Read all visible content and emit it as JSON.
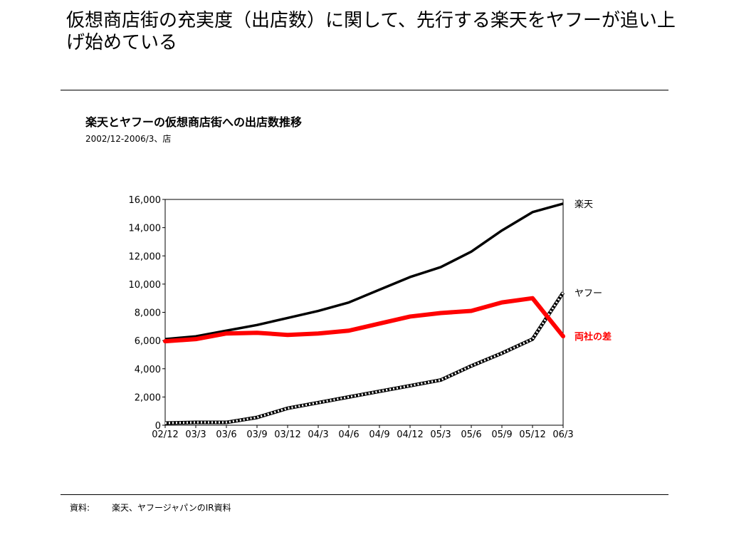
{
  "headline": "仮想商店街の充実度（出店数）に関して、先行する楽天をヤフーが追い上げ始めている",
  "source": {
    "label": "資料:",
    "text": "楽天、ヤフージャパンのIR資料"
  },
  "colors": {
    "rakuten": "#000000",
    "yahoo": "#000000",
    "difference": "#ff0000"
  },
  "chart_data": {
    "type": "line",
    "title": "楽天とヤフーの仮想商店街への出店数推移",
    "subtitle": "2002/12-2006/3、店",
    "categories": [
      "02/12",
      "03/3",
      "03/6",
      "03/9",
      "03/12",
      "04/3",
      "04/6",
      "04/9",
      "04/12",
      "05/3",
      "05/6",
      "05/9",
      "05/12",
      "06/3"
    ],
    "ylim": [
      0,
      16000
    ],
    "yticks": [
      0,
      2000,
      4000,
      6000,
      8000,
      10000,
      12000,
      14000,
      16000
    ],
    "ytick_labels": [
      "0",
      "2,000",
      "4,000",
      "6,000",
      "8,000",
      "10,000",
      "12,000",
      "14,000",
      "16,000"
    ],
    "grid": false,
    "series": [
      {
        "name": "楽天",
        "style": "solid",
        "color": "#000000",
        "values": [
          6100,
          6300,
          6700,
          7100,
          7600,
          8100,
          8700,
          9600,
          10500,
          11200,
          12300,
          13800,
          15100,
          15700
        ]
      },
      {
        "name": "ヤフー",
        "style": "hatched",
        "color": "#000000",
        "values": [
          150,
          200,
          200,
          550,
          1200,
          1600,
          2000,
          2400,
          2800,
          3200,
          4200,
          5100,
          6100,
          9400
        ]
      },
      {
        "name": "両社の差",
        "style": "thick",
        "color": "#ff0000",
        "values": [
          5950,
          6100,
          6500,
          6550,
          6400,
          6500,
          6700,
          7200,
          7700,
          7950,
          8100,
          8700,
          9000,
          6300
        ]
      }
    ]
  }
}
